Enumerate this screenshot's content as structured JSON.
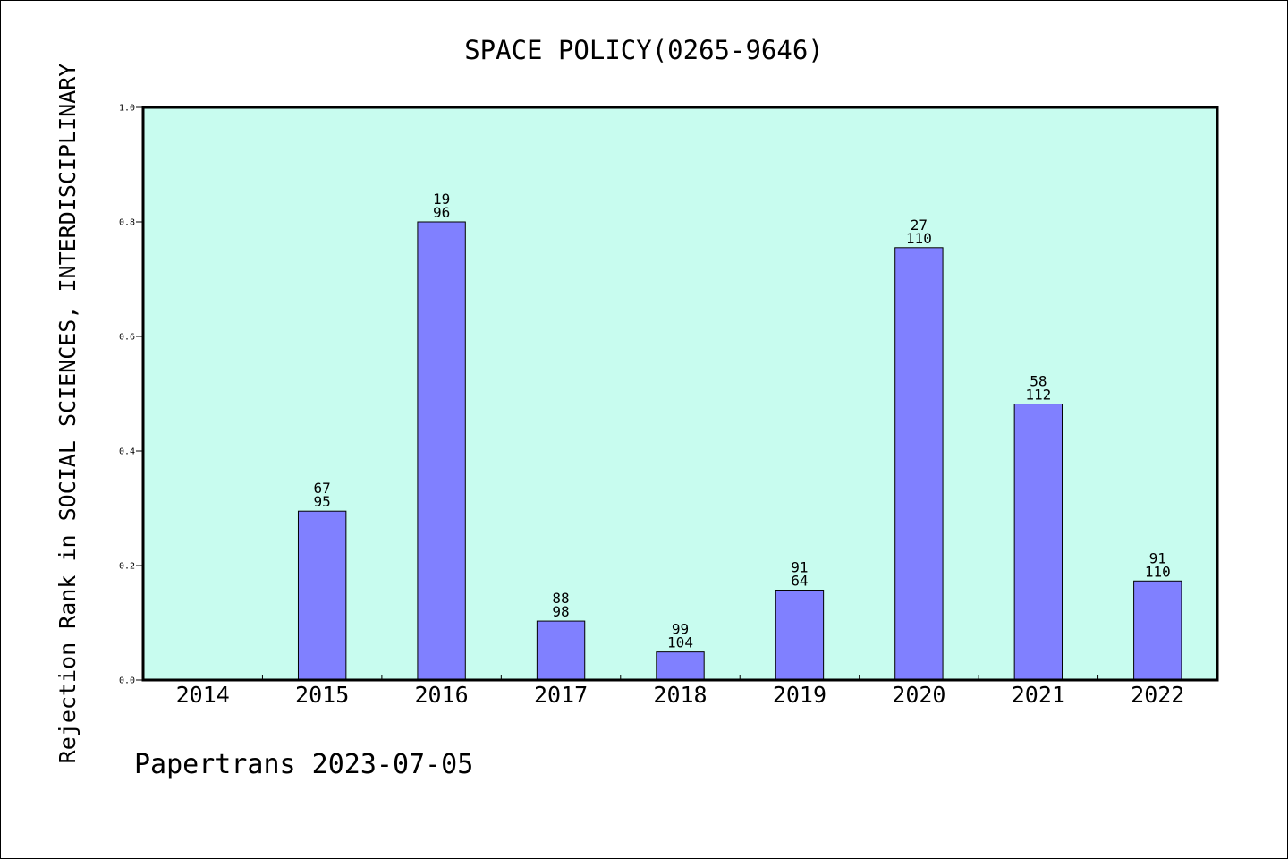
{
  "chart_data": {
    "type": "bar",
    "title": "SPACE POLICY(0265-9646)",
    "ylabel": "Rejection Rank in SOCIAL SCIENCES, INTERDISCIPLINARY",
    "xlabel": "",
    "ylim": [
      0,
      1.0
    ],
    "yticks": [
      "0.0",
      "0.2",
      "0.4",
      "0.6",
      "0.8",
      "1.0"
    ],
    "categories": [
      "2014",
      "2015",
      "2016",
      "2017",
      "2018",
      "2019",
      "2020",
      "2021",
      "2022"
    ],
    "values": [
      null,
      0.295,
      0.8,
      0.103,
      0.049,
      0.157,
      0.755,
      0.482,
      0.173
    ],
    "labels_top": [
      "",
      "67",
      "19",
      "88",
      "99",
      "91",
      "27",
      "58",
      "91"
    ],
    "labels_bottom": [
      "",
      "95",
      "96",
      "98",
      "104",
      "64",
      "110",
      "112",
      "110"
    ],
    "grid": false,
    "colors": {
      "plot_bg": "#c8fcef",
      "bar_fill": "#8080ff",
      "bar_stroke": "#000000"
    }
  },
  "footer": "Papertrans 2023-07-05"
}
